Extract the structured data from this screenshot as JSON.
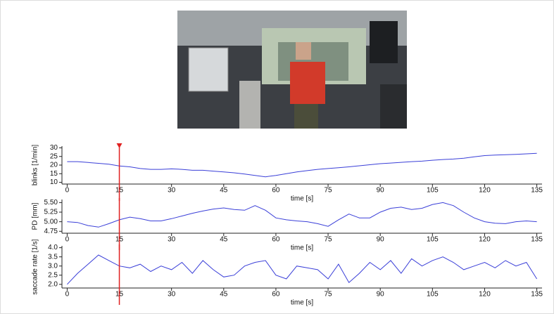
{
  "chart_data": [
    {
      "type": "line",
      "ylabel": "blinks [1/min]",
      "xlabel": "time [s]",
      "x": [
        0,
        3,
        6,
        9,
        12,
        15,
        18,
        21,
        24,
        27,
        30,
        33,
        36,
        39,
        42,
        45,
        48,
        51,
        54,
        57,
        60,
        63,
        66,
        69,
        72,
        75,
        78,
        81,
        84,
        87,
        90,
        93,
        96,
        99,
        102,
        105,
        108,
        111,
        114,
        117,
        120,
        123,
        126,
        129,
        132,
        135
      ],
      "series": [
        {
          "color": "#3a3fd8",
          "values": [
            22,
            22,
            21.5,
            21,
            20.5,
            19.5,
            19,
            18,
            17.5,
            17.5,
            17.8,
            17.5,
            17,
            17,
            16.5,
            16,
            15.5,
            14.8,
            14,
            13.2,
            14,
            15,
            16,
            16.8,
            17.5,
            18,
            18.5,
            19,
            19.6,
            20.2,
            20.8,
            21.2,
            21.6,
            22,
            22.3,
            22.8,
            23.2,
            23.5,
            24,
            24.8,
            25.5,
            25.8,
            26,
            26.2,
            26.5,
            26.8
          ]
        }
      ],
      "xlim": [
        -1.5,
        136.5
      ],
      "xticks": [
        0,
        15,
        30,
        45,
        60,
        75,
        90,
        105,
        120,
        135
      ],
      "ylim": [
        9,
        31
      ],
      "yticks": [
        10,
        15,
        20,
        25,
        30
      ],
      "marker_x": 15,
      "marker_color": "#e02020"
    },
    {
      "type": "line",
      "ylabel": "PD [mm]",
      "xlabel": "time [s]",
      "x": [
        0,
        3,
        6,
        9,
        12,
        15,
        18,
        21,
        24,
        27,
        30,
        33,
        36,
        39,
        42,
        45,
        48,
        51,
        54,
        57,
        60,
        63,
        66,
        69,
        72,
        75,
        78,
        81,
        84,
        87,
        90,
        93,
        96,
        99,
        102,
        105,
        108,
        111,
        114,
        117,
        120,
        123,
        126,
        129,
        132,
        135
      ],
      "series": [
        {
          "color": "#3a3fd8",
          "values": [
            5.0,
            4.98,
            4.9,
            4.86,
            4.95,
            5.05,
            5.12,
            5.08,
            5.02,
            5.02,
            5.08,
            5.15,
            5.22,
            5.28,
            5.33,
            5.36,
            5.32,
            5.3,
            5.42,
            5.3,
            5.1,
            5.05,
            5.02,
            5.0,
            4.95,
            4.88,
            5.05,
            5.2,
            5.1,
            5.1,
            5.25,
            5.35,
            5.38,
            5.32,
            5.35,
            5.45,
            5.5,
            5.42,
            5.25,
            5.1,
            5.0,
            4.96,
            4.95,
            5.0,
            5.02,
            5.0
          ]
        }
      ],
      "xlim": [
        -1.5,
        136.5
      ],
      "xticks": [
        0,
        15,
        30,
        45,
        60,
        75,
        90,
        105,
        120,
        135
      ],
      "ylim": [
        4.7,
        5.58
      ],
      "yticks": [
        {
          "value": 4.75,
          "label": "4.75"
        },
        {
          "value": 5,
          "label": "5.00"
        },
        {
          "value": 5.25,
          "label": "5.25"
        },
        {
          "value": 5.5,
          "label": "5.50"
        }
      ],
      "marker_x": 15,
      "marker_color": "#e02020"
    },
    {
      "type": "line",
      "ylabel": "saccade rate [1/s]",
      "xlabel": "time [s]",
      "x": [
        0,
        3,
        6,
        9,
        12,
        15,
        18,
        21,
        24,
        27,
        30,
        33,
        36,
        39,
        42,
        45,
        48,
        51,
        54,
        57,
        60,
        63,
        66,
        69,
        72,
        75,
        78,
        81,
        84,
        87,
        90,
        93,
        96,
        99,
        102,
        105,
        108,
        111,
        114,
        117,
        120,
        123,
        126,
        129,
        132,
        135
      ],
      "series": [
        {
          "color": "#3a3fd8",
          "values": [
            2.0,
            2.6,
            3.1,
            3.6,
            3.3,
            3.0,
            2.9,
            3.1,
            2.7,
            3.0,
            2.8,
            3.2,
            2.6,
            3.3,
            2.8,
            2.4,
            2.5,
            3.0,
            3.2,
            3.3,
            2.5,
            2.3,
            3.0,
            2.9,
            2.8,
            2.3,
            3.1,
            2.1,
            2.6,
            3.2,
            2.8,
            3.3,
            2.6,
            3.4,
            3.0,
            3.3,
            3.5,
            3.2,
            2.8,
            3.0,
            3.2,
            2.9,
            3.3,
            3.0,
            3.2,
            2.3
          ]
        }
      ],
      "xlim": [
        -1.5,
        136.5
      ],
      "xticks": [
        0,
        15,
        30,
        45,
        60,
        75,
        90,
        105,
        120,
        135
      ],
      "ylim": [
        1.8,
        4.1
      ],
      "yticks": [
        {
          "value": 2,
          "label": "2.0"
        },
        {
          "value": 2.5,
          "label": "2.5"
        },
        {
          "value": 3,
          "label": "3.0"
        },
        {
          "value": 3.5,
          "label": "3.5"
        },
        {
          "value": 4,
          "label": "4.0"
        }
      ],
      "marker_x": 15,
      "marker_color": "#e02020"
    }
  ]
}
